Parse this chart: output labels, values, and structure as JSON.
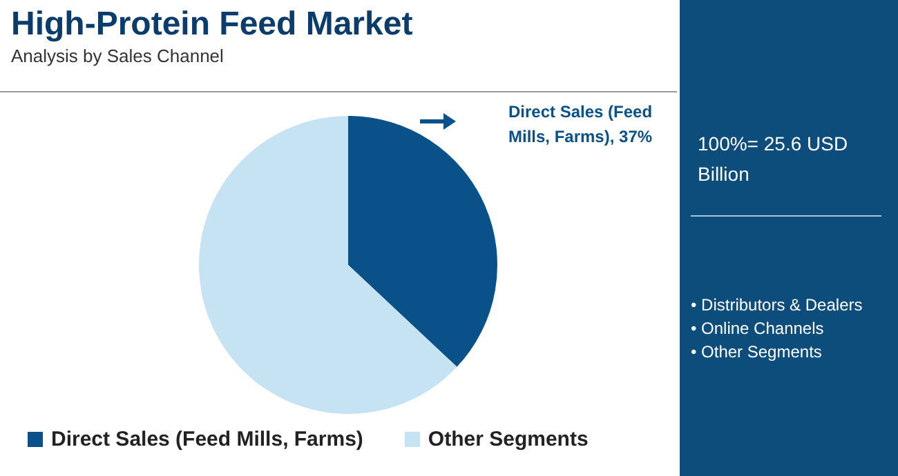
{
  "chart_data": {
    "type": "pie",
    "title": "High-Protein Feed Market",
    "subtitle": "Analysis by Sales Channel",
    "categories": [
      "Direct Sales (Feed Mills, Farms)",
      "Other Segments"
    ],
    "values": [
      37,
      63
    ],
    "colors": [
      "#0b5189",
      "#c5e3f2"
    ],
    "value_labels": [
      "Direct Sales (Feed Mills, Farms), 37%",
      null
    ],
    "legend": "bottom",
    "annotations": [
      "100%= 25.6 USD Billion",
      "• Distributors & Dealers",
      "• Online Channels",
      "• Other Segments"
    ]
  }
}
